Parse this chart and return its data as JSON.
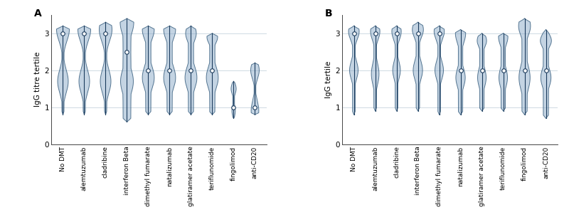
{
  "categories": [
    "No DMT",
    "alemtuzumab",
    "cladribine",
    "interferon Beta",
    "dimethyl fumarate",
    "natalizumab",
    "glatiramer acetate",
    "teriflunomide",
    "fingolimod",
    "anti-CD20"
  ],
  "ylabel_A": "IgG titre tertile",
  "ylabel_B": "IgG tertile",
  "ylim": [
    0,
    3.5
  ],
  "yticks": [
    0,
    1,
    2,
    3
  ],
  "violin_facecolor": "#8aaac8",
  "violin_edgecolor": "#3a6080",
  "violin_alpha": 0.5,
  "median_color": "#1a3a5c",
  "dot_color": "white",
  "dot_edgecolor": "#1a3a5c",
  "background_color": "#ffffff",
  "grid_color": "#c8d4de",
  "panel_A": {
    "medians": [
      3.0,
      3.0,
      3.0,
      2.5,
      2.0,
      2.0,
      2.0,
      2.0,
      1.0,
      1.0
    ],
    "whisker_low": [
      0.8,
      0.8,
      0.8,
      0.6,
      0.8,
      0.8,
      0.8,
      0.8,
      0.7,
      0.8
    ],
    "whisker_high": [
      3.2,
      3.2,
      3.3,
      3.4,
      3.2,
      3.2,
      3.2,
      3.0,
      1.7,
      2.2
    ],
    "top_peak": [
      3.1,
      3.1,
      3.1,
      3.3,
      3.1,
      3.1,
      3.0,
      2.9,
      1.5,
      2.0
    ],
    "bot_peak": [
      1.7,
      1.7,
      1.7,
      1.7,
      1.8,
      1.8,
      1.8,
      1.8,
      0.9,
      0.9
    ],
    "waist_y": [
      2.4,
      2.4,
      2.4,
      2.5,
      2.5,
      2.5,
      2.5,
      2.5,
      1.2,
      1.5
    ],
    "top_width": [
      0.3,
      0.3,
      0.3,
      0.32,
      0.28,
      0.28,
      0.25,
      0.25,
      0.12,
      0.2
    ],
    "bot_width": [
      0.25,
      0.25,
      0.25,
      0.3,
      0.28,
      0.28,
      0.28,
      0.28,
      0.08,
      0.18
    ],
    "waist_width": [
      0.05,
      0.05,
      0.05,
      0.18,
      0.12,
      0.12,
      0.12,
      0.12,
      0.04,
      0.04
    ]
  },
  "panel_B": {
    "medians": [
      3.0,
      3.0,
      3.0,
      3.0,
      3.0,
      2.0,
      2.0,
      2.0,
      2.0,
      2.0
    ],
    "whisker_low": [
      0.8,
      0.9,
      0.9,
      0.9,
      0.8,
      0.8,
      0.9,
      0.9,
      0.8,
      0.7
    ],
    "whisker_high": [
      3.2,
      3.2,
      3.2,
      3.3,
      3.2,
      3.1,
      3.0,
      3.0,
      3.4,
      3.1
    ],
    "top_peak": [
      3.05,
      3.05,
      3.05,
      3.1,
      3.05,
      3.0,
      2.8,
      2.9,
      3.2,
      2.8
    ],
    "bot_peak": [
      2.0,
      1.9,
      2.0,
      2.0,
      2.0,
      1.8,
      1.8,
      1.8,
      1.8,
      1.8
    ],
    "waist_y": [
      2.55,
      2.55,
      2.55,
      2.6,
      2.55,
      2.4,
      2.4,
      2.4,
      2.6,
      2.4
    ],
    "top_width": [
      0.25,
      0.22,
      0.22,
      0.26,
      0.24,
      0.24,
      0.22,
      0.22,
      0.28,
      0.26
    ],
    "bot_width": [
      0.2,
      0.18,
      0.18,
      0.22,
      0.2,
      0.22,
      0.2,
      0.2,
      0.26,
      0.24
    ],
    "waist_width": [
      0.06,
      0.06,
      0.06,
      0.08,
      0.06,
      0.1,
      0.1,
      0.1,
      0.12,
      0.12
    ]
  }
}
